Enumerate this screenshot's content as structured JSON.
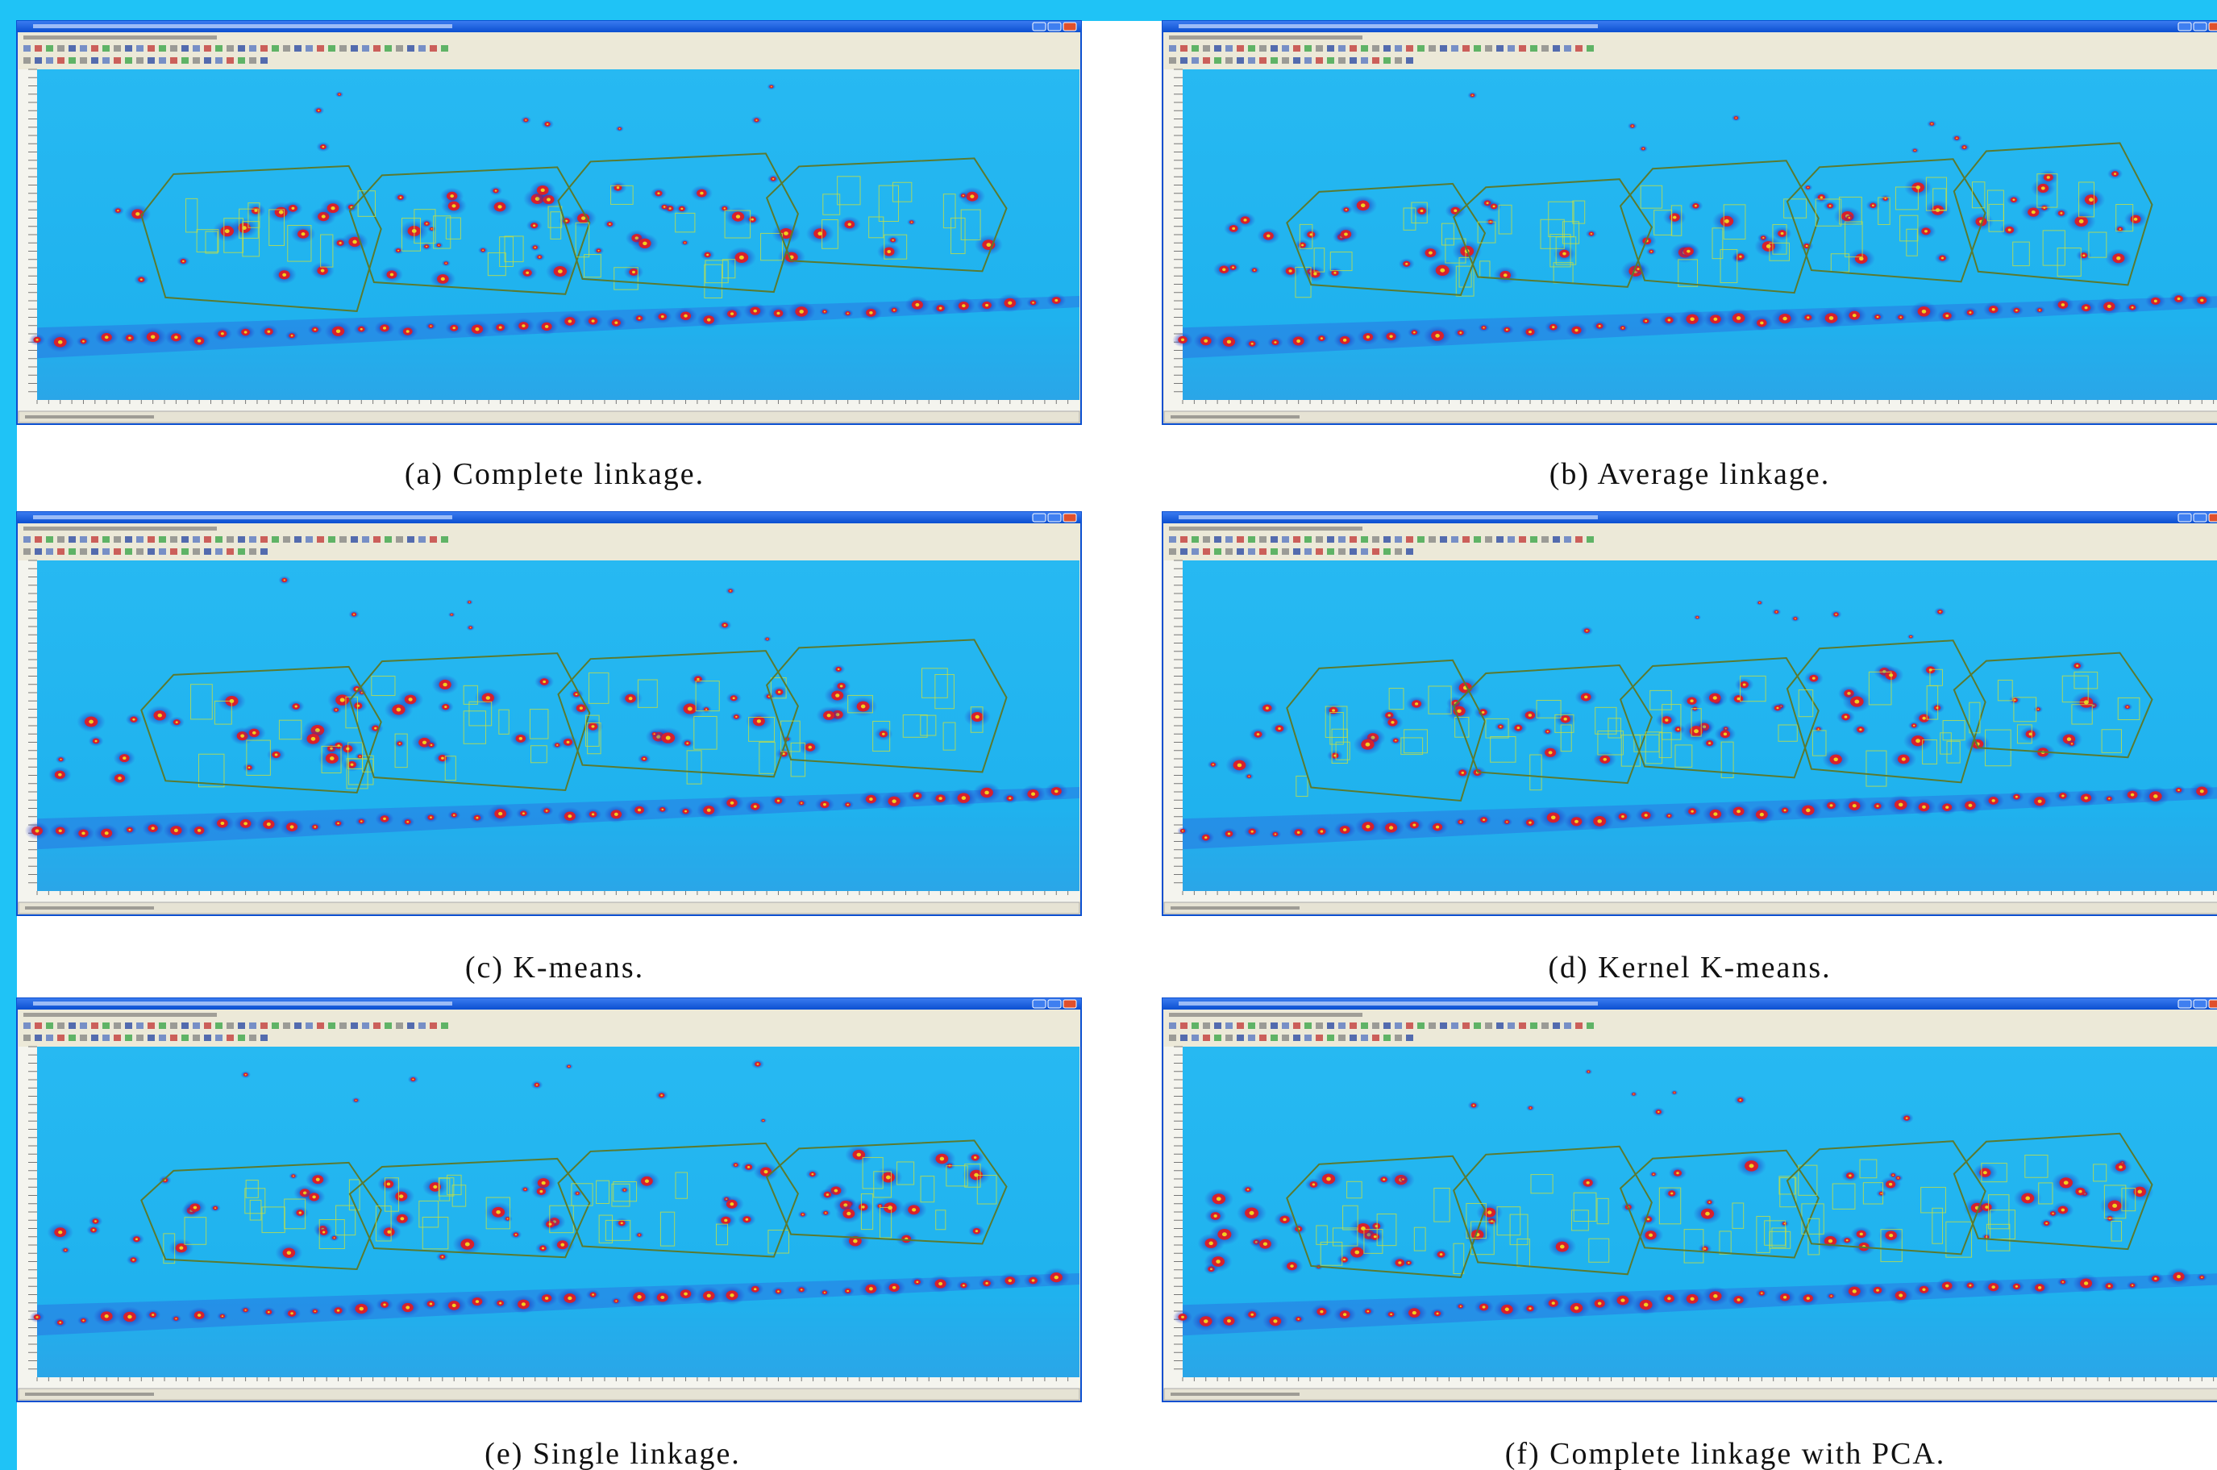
{
  "figure": {
    "panels": [
      {
        "caption": "(a) Complete linkage."
      },
      {
        "caption": "(b) Average linkage."
      },
      {
        "caption": "(c) K-means."
      },
      {
        "caption": "(d) Kernel K-means."
      },
      {
        "caption": "(e) Single linkage."
      },
      {
        "caption": "(f) Complete linkage with PCA."
      }
    ]
  }
}
